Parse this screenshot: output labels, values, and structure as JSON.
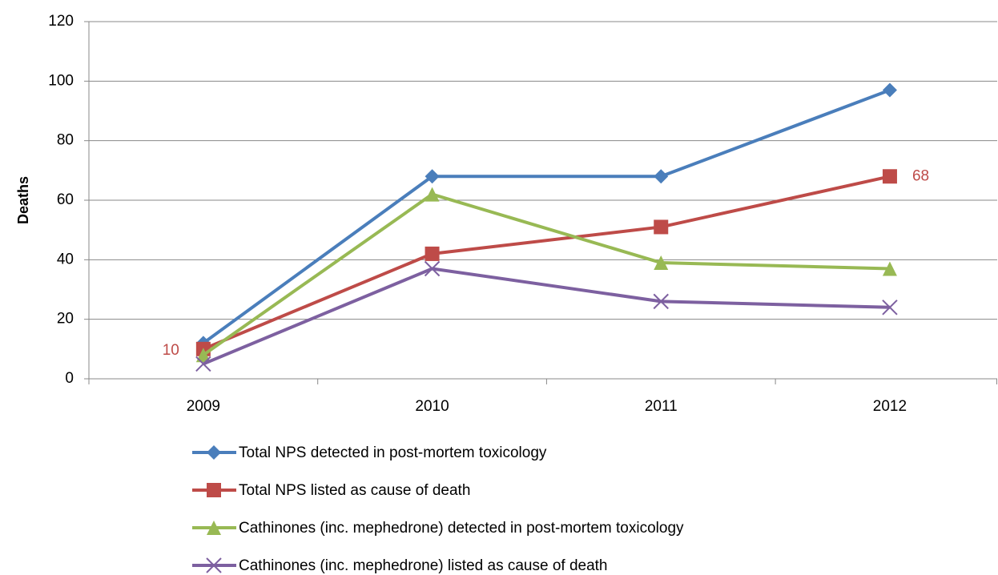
{
  "chart_data": {
    "type": "line",
    "y_label": "Deaths",
    "categories": [
      "2009",
      "2010",
      "2011",
      "2012"
    ],
    "ylim": [
      0,
      120
    ],
    "yticks": [
      0,
      20,
      40,
      60,
      80,
      100,
      120
    ],
    "grid": true,
    "legend": "bottom",
    "series": [
      {
        "name": "Total NPS detected in post-mortem toxicology",
        "color": "#4a7ebb",
        "marker": "diamond",
        "values": [
          12,
          68,
          68,
          97
        ]
      },
      {
        "name": "Total NPS listed as cause of death",
        "color": "#be4b48",
        "marker": "square",
        "values": [
          10,
          42,
          51,
          68
        ],
        "data_labels": [
          0,
          3
        ]
      },
      {
        "name": "Cathinones (inc. mephedrone) detected in post-mortem toxicology",
        "color": "#98b954",
        "marker": "triangle",
        "values": [
          8,
          62,
          39,
          37
        ]
      },
      {
        "name": "Cathinones (inc. mephedrone) listed as cause of death",
        "color": "#7d60a0",
        "marker": "x",
        "values": [
          5,
          37,
          26,
          24
        ]
      }
    ]
  }
}
